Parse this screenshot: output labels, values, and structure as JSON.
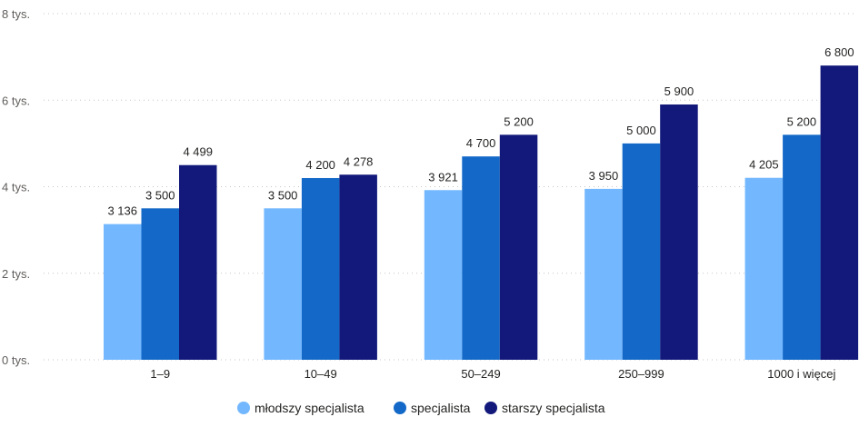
{
  "chart_data": {
    "type": "bar",
    "categories": [
      "1–9",
      "10–49",
      "50–249",
      "250–999",
      "1000 i więcej"
    ],
    "series": [
      {
        "name": "młodszy specjalista",
        "color": "#73b8ff",
        "values": [
          3136,
          3500,
          3921,
          3950,
          4205
        ],
        "labels": [
          "3 136",
          "3 500",
          "3 921",
          "3 950",
          "4 205"
        ]
      },
      {
        "name": "specjalista",
        "color": "#1469c8",
        "values": [
          3500,
          4200,
          4700,
          5000,
          5200
        ],
        "labels": [
          "3 500",
          "4 200",
          "4 700",
          "5 000",
          "5 200"
        ]
      },
      {
        "name": "starszy specjalista",
        "color": "#12197a",
        "values": [
          4499,
          4278,
          5200,
          5900,
          6800
        ],
        "labels": [
          "4 499",
          "4 278",
          "5 200",
          "5 900",
          "6 800"
        ]
      }
    ],
    "yticks": [
      {
        "value": 0,
        "label": "0 tys."
      },
      {
        "value": 2000,
        "label": "2 tys."
      },
      {
        "value": 4000,
        "label": "4 tys."
      },
      {
        "value": 6000,
        "label": "6 tys."
      },
      {
        "value": 8000,
        "label": "8 tys."
      }
    ],
    "ylim": [
      0,
      8000
    ],
    "grid": true,
    "legend_position": "bottom-center"
  }
}
